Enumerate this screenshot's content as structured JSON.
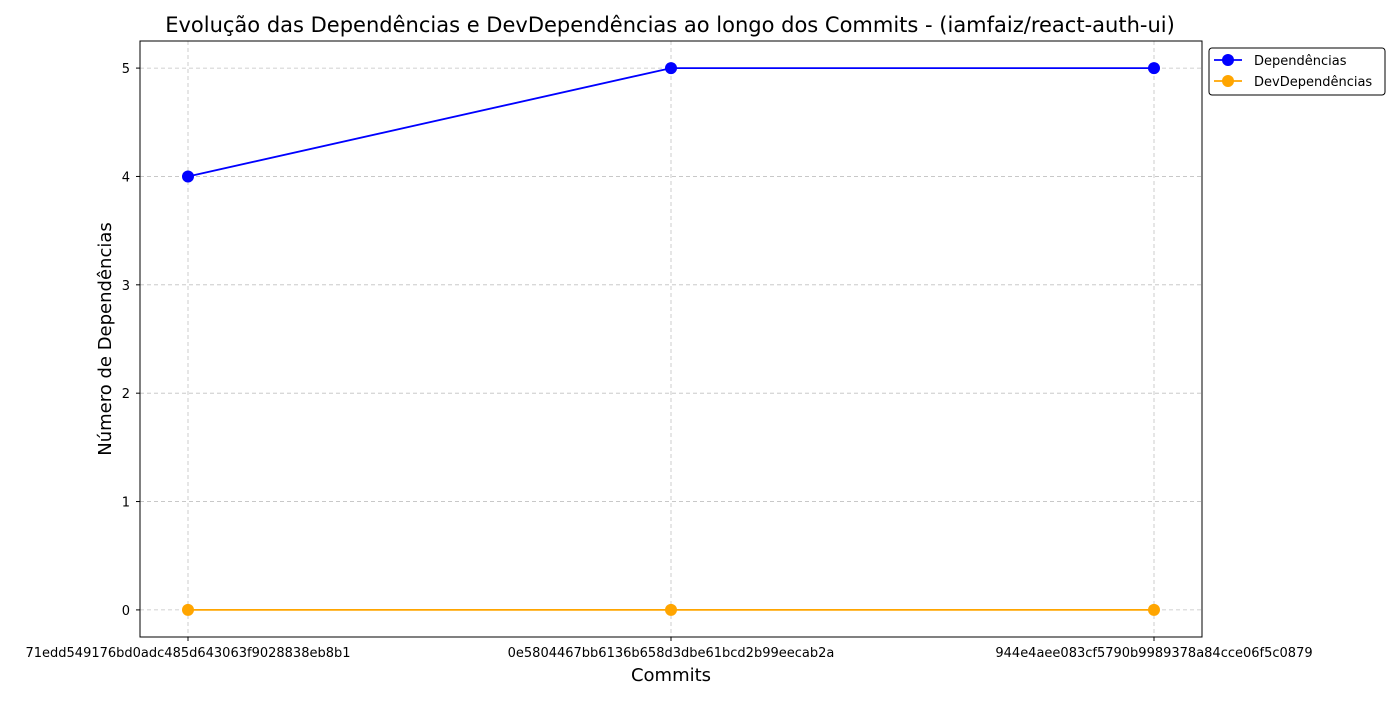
{
  "chart_data": {
    "type": "line",
    "title": "Evolução das Dependências e DevDependências ao longo dos Commits - (iamfaiz/react-auth-ui)",
    "xlabel": "Commits",
    "ylabel": "Número de Dependências",
    "categories": [
      "71edd549176bd0adc485d643063f9028838eb8b1",
      "0e5804467bb6136b658d3dbe61bcd2b99eecab2a",
      "944e4aee083cf5790b9989378a84cce06f5c0879"
    ],
    "series": [
      {
        "name": "Dependências",
        "values": [
          4,
          5,
          5
        ],
        "color": "#0000ff"
      },
      {
        "name": "DevDependências",
        "values": [
          0,
          0,
          0
        ],
        "color": "#ffa500"
      }
    ],
    "y_ticks": [
      "0",
      "1",
      "2",
      "3",
      "4",
      "5"
    ],
    "ylim": [
      -0.25,
      5.25
    ],
    "grid": true,
    "grid_style": "dashed",
    "legend_position": "outside-top-right",
    "marker": "circle"
  }
}
